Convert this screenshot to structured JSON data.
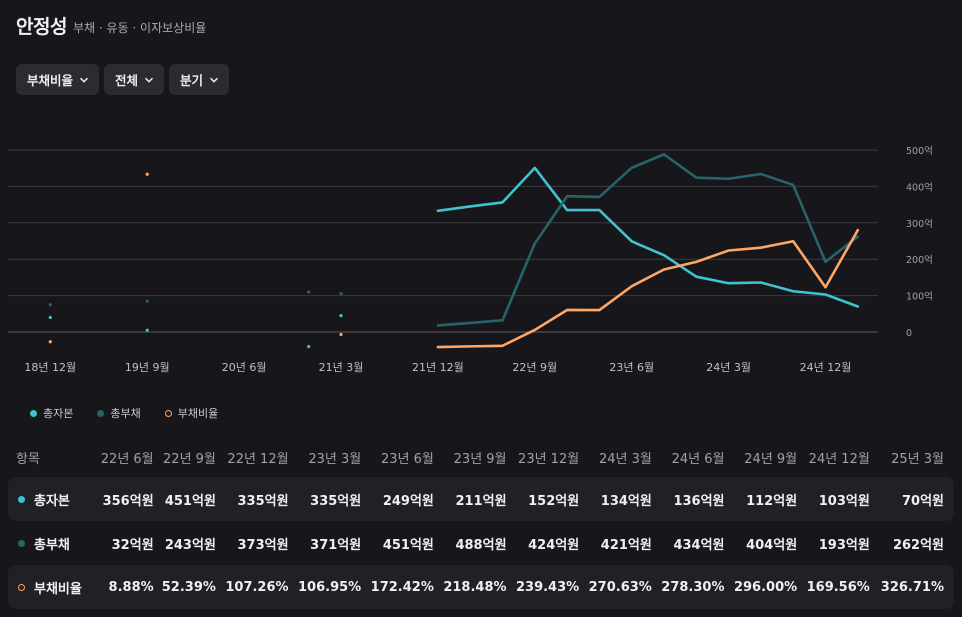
{
  "header": {
    "title": "안정성",
    "subtitle": "부채 · 유동 · 이자보상비율"
  },
  "filters": [
    {
      "label": "부채비율"
    },
    {
      "label": "전체"
    },
    {
      "label": "분기"
    }
  ],
  "colors": {
    "equity": "#3ec3cf",
    "debt": "#256469",
    "ratio": "#ffa665",
    "grid": "#3a3a40",
    "bg": "#17171b"
  },
  "chart_data": {
    "type": "line",
    "categories": [
      "18년 9월",
      "18년 12월",
      "19년 3월",
      "19년 6월",
      "19년 9월",
      "19년 12월",
      "20년 3월",
      "20년 6월",
      "20년 9월",
      "20년 12월",
      "21년 3월",
      "21년 6월",
      "21년 9월",
      "21년 12월",
      "22년 3월",
      "22년 6월",
      "22년 9월",
      "22년 12월",
      "23년 3월",
      "23년 6월",
      "23년 9월",
      "23년 12월",
      "24년 3월",
      "24년 6월",
      "24년 9월",
      "24년 12월",
      "25년 3월"
    ],
    "x_tick_labels": [
      "18년 12월",
      "19년 9월",
      "20년 6월",
      "21년 3월",
      "21년 12월",
      "22년 9월",
      "23년 6월",
      "24년 3월",
      "24년 12월"
    ],
    "y_ticks": [
      "0",
      "100억",
      "200억",
      "300억",
      "400억",
      "500억"
    ],
    "series": [
      {
        "name": "총자본",
        "axis": "right",
        "unit": "억원",
        "values": [
          null,
          40,
          null,
          null,
          null,
          null,
          null,
          null,
          null,
          null,
          null,
          null,
          null,
          333,
          345,
          356,
          451,
          335,
          335,
          249,
          211,
          152,
          134,
          136,
          112,
          103,
          70
        ]
      },
      {
        "name": "총부채",
        "axis": "right",
        "unit": "억원",
        "values": [
          null,
          75,
          null,
          null,
          85,
          null,
          null,
          null,
          null,
          110,
          105,
          null,
          null,
          18,
          25,
          32,
          243,
          373,
          371,
          451,
          488,
          424,
          421,
          434,
          404,
          193,
          262
        ]
      },
      {
        "name": "부채비율",
        "axis": "left",
        "unit": "%",
        "values": [
          null,
          20,
          null,
          null,
          480,
          null,
          null,
          null,
          null,
          null,
          null,
          null,
          null,
          5.4,
          7.2,
          8.88,
          52.39,
          107.26,
          106.95,
          172.42,
          218.48,
          239.43,
          270.63,
          278.3,
          296.0,
          169.56,
          326.71
        ]
      }
    ],
    "scatter_points": [
      {
        "series": "총자본",
        "category": "19년 9월",
        "value": 5
      },
      {
        "series": "총자본",
        "category": "21년 3월",
        "value": 45
      },
      {
        "series": "총자본",
        "category": "20년 12월",
        "value": -40
      },
      {
        "series": "부채비율",
        "category": "21년 3월",
        "value": 40
      }
    ],
    "ylim_right": [
      -30,
      500
    ]
  },
  "legend": [
    "총자본",
    "총부채",
    "부채비율"
  ],
  "table": {
    "header": [
      "항목",
      "22년 6월",
      "22년 9월",
      "22년 12월",
      "23년 3월",
      "23년 6월",
      "23년 9월",
      "23년 12월",
      "24년 3월",
      "24년 6월",
      "24년 9월",
      "24년 12월",
      "25년 3월"
    ],
    "rows": [
      {
        "label": "총자본",
        "cells": [
          "356억원",
          "451억원",
          "335억원",
          "335억원",
          "249억원",
          "211억원",
          "152억원",
          "134억원",
          "136억원",
          "112억원",
          "103억원",
          "70억원"
        ]
      },
      {
        "label": "총부채",
        "cells": [
          "32억원",
          "243억원",
          "373억원",
          "371억원",
          "451억원",
          "488억원",
          "424억원",
          "421억원",
          "434억원",
          "404억원",
          "193억원",
          "262억원"
        ]
      },
      {
        "label": "부채비율",
        "cells": [
          "8.88%",
          "52.39%",
          "107.26%",
          "106.95%",
          "172.42%",
          "218.48%",
          "239.43%",
          "270.63%",
          "278.30%",
          "296.00%",
          "169.56%",
          "326.71%"
        ]
      }
    ]
  }
}
